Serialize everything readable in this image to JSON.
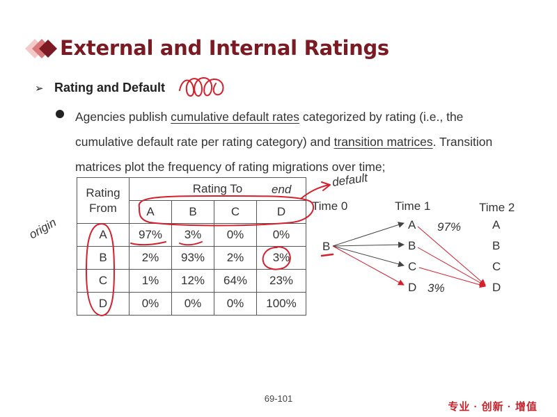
{
  "title": "External and Internal Ratings",
  "section": "Rating and Default",
  "bullet": {
    "t1": "Agencies publish ",
    "u1": "cumulative default rates",
    "t2": " categorized by rating (i.e., the cumulative default rate per rating category) and ",
    "u2": "transition matrices",
    "t3": ". Transition matrices plot the frequency of rating migrations over time;"
  },
  "matrix": {
    "row_header": "Rating From",
    "col_header": "Rating To",
    "columns": [
      "A",
      "B",
      "C",
      "D"
    ],
    "rows": [
      {
        "label": "A",
        "values": [
          "97%",
          "3%",
          "0%",
          "0%"
        ]
      },
      {
        "label": "B",
        "values": [
          "2%",
          "93%",
          "2%",
          "3%"
        ]
      },
      {
        "label": "C",
        "values": [
          "1%",
          "12%",
          "64%",
          "23%"
        ]
      },
      {
        "label": "D",
        "values": [
          "0%",
          "0%",
          "0%",
          "100%"
        ]
      }
    ]
  },
  "timeline": {
    "time0": "Time 0",
    "time1": "Time 1",
    "time2": "Time 2",
    "start": "B",
    "t1_ratings": [
      "A",
      "B",
      "C",
      "D"
    ],
    "t2_ratings": [
      "A",
      "B",
      "C",
      "D"
    ]
  },
  "annotations": {
    "origin": "origin",
    "end": "end",
    "default": "default",
    "a_pct": "97%",
    "d_pct": "3%"
  },
  "page_number": "69-101",
  "footer": "专业 · 创新 · 增值"
}
